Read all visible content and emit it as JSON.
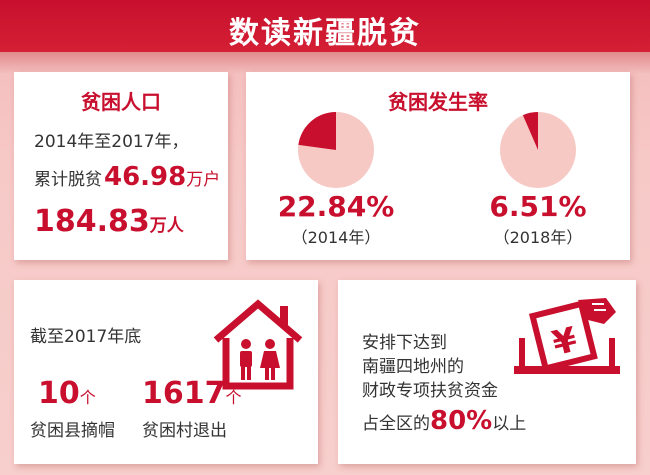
{
  "title": "数读新疆脱贫",
  "colors": {
    "accent": "#c8102e",
    "pie_light": "#f7c9c4",
    "text": "#333333"
  },
  "poverty_population": {
    "heading": "贫困人口",
    "line1": "2014年至2017年，",
    "line2_prefix": "累计脱贫",
    "households_value": "46.98",
    "households_unit": "万户",
    "people_value": "184.83",
    "people_unit": "万人"
  },
  "poverty_rate": {
    "heading": "贫困发生率",
    "items": [
      {
        "value": "22.84%",
        "year": "（2014年）",
        "fraction": 0.2284
      },
      {
        "value": "6.51%",
        "year": "（2018年）",
        "fraction": 0.0651
      }
    ]
  },
  "counties": {
    "line1": "截至2017年底",
    "county_value": "10",
    "county_unit": "个",
    "county_caption": "贫困县摘帽",
    "village_value": "1617",
    "village_unit": "个",
    "village_caption": "贫困村退出",
    "icon": "house-family-icon"
  },
  "funds": {
    "line1": "安排下达到",
    "line2": "南疆四地州的",
    "line3": "财政专项扶贫资金",
    "line4_prefix": "占全区的",
    "share_value": "80%",
    "line4_suffix": "以上",
    "icon": "yuan-hand-icon"
  }
}
